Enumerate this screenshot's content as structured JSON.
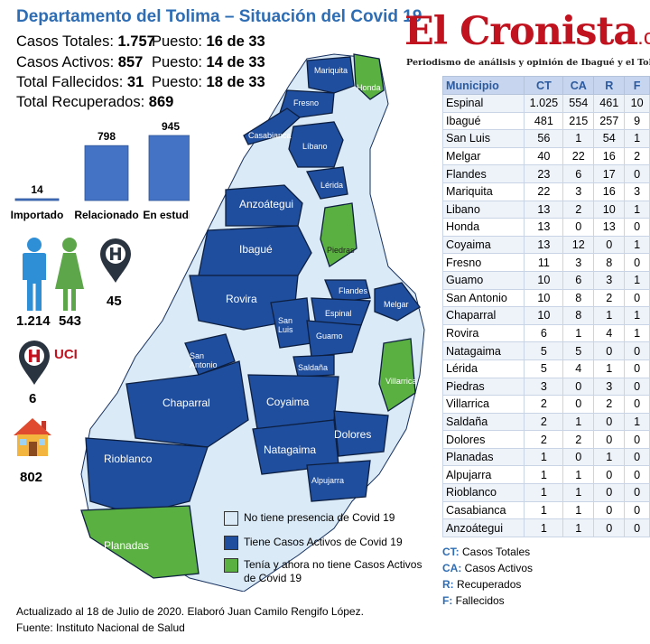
{
  "header": {
    "title": "Departamento del Tolima – Situación del Covid 19"
  },
  "stats": [
    {
      "label": "Casos Totales: ",
      "value": "1.757",
      "rank_label": "Puesto: ",
      "rank_value": "16 de 33"
    },
    {
      "label": "Casos Activos: ",
      "value": "857",
      "rank_label": "Puesto: ",
      "rank_value": "14 de 33"
    },
    {
      "label": "Total Fallecidos: ",
      "value": "31",
      "rank_label": "Puesto: ",
      "rank_value": "18 de 33"
    },
    {
      "label": "Total Recuperados: ",
      "value": "869",
      "rank_label": "",
      "rank_value": ""
    }
  ],
  "brand": {
    "name": "El Cronista",
    "suffix": ".co",
    "tagline": "Periodismo de análisis y opinión de Ibagué y el Tolima"
  },
  "chart_data": [
    {
      "type": "bar",
      "categories": [
        "Importado",
        "Relacionado",
        "En estudio"
      ],
      "values": [
        14,
        798,
        945
      ],
      "title": "",
      "xlabel": "",
      "ylabel": "",
      "ylim": [
        0,
        945
      ],
      "color": "#4472c4"
    },
    {
      "type": "table",
      "columns": [
        "Municipio",
        "CT",
        "CA",
        "R",
        "F"
      ],
      "rows": [
        [
          "Espinal",
          "1.025",
          "554",
          "461",
          "10"
        ],
        [
          "Ibagué",
          "481",
          "215",
          "257",
          "9"
        ],
        [
          "San Luis",
          "56",
          "1",
          "54",
          "1"
        ],
        [
          "Melgar",
          "40",
          "22",
          "16",
          "2"
        ],
        [
          "Flandes",
          "23",
          "6",
          "17",
          "0"
        ],
        [
          "Mariquita",
          "22",
          "3",
          "16",
          "3"
        ],
        [
          "Libano",
          "13",
          "2",
          "10",
          "1"
        ],
        [
          "Honda",
          "13",
          "0",
          "13",
          "0"
        ],
        [
          "Coyaima",
          "13",
          "12",
          "0",
          "1"
        ],
        [
          "Fresno",
          "11",
          "3",
          "8",
          "0"
        ],
        [
          "Guamo",
          "10",
          "6",
          "3",
          "1"
        ],
        [
          "San Antonio",
          "10",
          "8",
          "2",
          "0"
        ],
        [
          "Chaparral",
          "10",
          "8",
          "1",
          "1"
        ],
        [
          "Rovira",
          "6",
          "1",
          "4",
          "1"
        ],
        [
          "Natagaima",
          "5",
          "5",
          "0",
          "0"
        ],
        [
          "Lérida",
          "5",
          "4",
          "1",
          "0"
        ],
        [
          "Piedras",
          "3",
          "0",
          "3",
          "0"
        ],
        [
          "Villarrica",
          "2",
          "0",
          "2",
          "0"
        ],
        [
          "Saldaña",
          "2",
          "1",
          "0",
          "1"
        ],
        [
          "Dolores",
          "2",
          "2",
          "0",
          "0"
        ],
        [
          "Planadas",
          "1",
          "0",
          "1",
          "0"
        ],
        [
          "Alpujarra",
          "1",
          "1",
          "0",
          "0"
        ],
        [
          "Rioblanco",
          "1",
          "1",
          "0",
          "0"
        ],
        [
          "Casabianca",
          "1",
          "1",
          "0",
          "0"
        ],
        [
          "Anzoátegui",
          "1",
          "1",
          "0",
          "0"
        ]
      ]
    }
  ],
  "demographics": {
    "male_value": "1.214",
    "female_value": "543",
    "hospital_value": "45",
    "uci_label": "UCI",
    "uci_value": "6",
    "home_value": "802",
    "male_icon": "male-person-icon",
    "female_icon": "female-person-icon",
    "hospital_icon": "hospital-pin-icon",
    "uci_icon": "uci-pin-icon",
    "home_icon": "house-icon"
  },
  "map": {
    "labels": {
      "mariquita": "Mariquita",
      "fresno": "Fresno",
      "honda": "Honda",
      "casabianca": "Casabianca",
      "libano": "Líbano",
      "lerida": "Lérida",
      "anzoategui": "Anzoátegui",
      "ibague": "Ibagué",
      "piedras": "Piedras",
      "rovira": "Rovira",
      "flandes": "Flandes",
      "espinal": "Espinal",
      "melgar": "Melgar",
      "san_luis": "San\nLuis",
      "guamo": "Guamo",
      "san_antonio": "San\nAntonio",
      "saldana": "Saldaña",
      "chaparral": "Chaparral",
      "coyaima": "Coyaima",
      "villarrica": "Villarrica",
      "dolores": "Dolores",
      "natagaima": "Natagaima",
      "rioblanco": "Rioblanco",
      "alpujarra": "Alpujarra",
      "planadas": "Planadas"
    },
    "colors": {
      "none": "#dbeaf7",
      "active": "#1f4e9e",
      "recovered": "#5ab040"
    }
  },
  "legend": [
    {
      "label": "No tiene presencia de Covid 19",
      "color": "#dbeaf7"
    },
    {
      "label": "Tiene Casos Activos de Covid 19",
      "color": "#1f4e9e"
    },
    {
      "label": "Tenía y ahora no tiene Casos Activos de Covid 19",
      "color": "#5ab040"
    }
  ],
  "abbreviations": [
    {
      "key": "CT:",
      "text": " Casos Totales"
    },
    {
      "key": "CA:",
      "text": " Casos Activos"
    },
    {
      "key": "R:",
      "text": " Recuperados"
    },
    {
      "key": "F:",
      "text": " Fallecidos"
    }
  ],
  "footer": {
    "updated": "Actualizado al 18 de Julio de 2020. Elaboró Juan Camilo Rengifo López.",
    "source": "Fuente: Instituto Nacional de Salud"
  }
}
